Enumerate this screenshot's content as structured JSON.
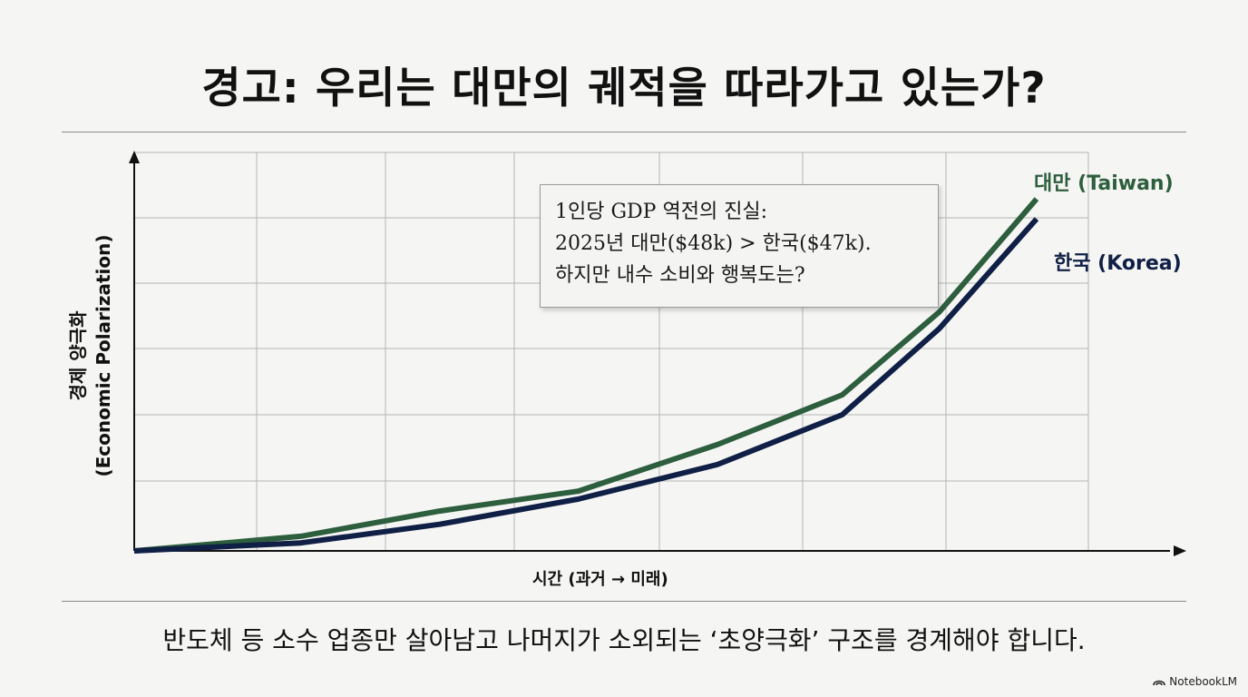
{
  "title": "경고: 우리는 대만의 궤적을 따라가고 있는가?",
  "callout": {
    "line1": "1인당 GDP 역전의 진실:",
    "line2": "2025년 대만($48k) > 한국($47k).",
    "line3": "하지만 내수 소비와 행복도는?"
  },
  "footer": "반도체 등 소수 업종만 살아남고 나머지가 소외되는 ‘초양극화’ 구조를 경계해야 합니다.",
  "brand": "NotebookLM",
  "colors": {
    "taiwan": "#2d5e3e",
    "korea": "#0f1f45",
    "grid": "#b5b5b5",
    "axis": "#111111"
  },
  "chart_data": {
    "type": "line",
    "xlabel": "시간 (과거 → 미래)",
    "ylabel_line1": "경제 양극화",
    "ylabel_line2": "(Economic Polarization)",
    "grid": true,
    "ylim": [
      0,
      6
    ],
    "xlim": [
      0,
      7.5
    ],
    "series": [
      {
        "name": "대만 (Taiwan)",
        "color": "#2d5e3e",
        "x": [
          0,
          1.2,
          2.2,
          3.2,
          4.2,
          5.1,
          5.8,
          6.5
        ],
        "values": [
          0,
          0.22,
          0.6,
          0.9,
          1.6,
          2.35,
          3.6,
          5.3
        ]
      },
      {
        "name": "한국 (Korea)",
        "color": "#0f1f45",
        "x": [
          0,
          1.2,
          2.2,
          3.2,
          4.2,
          5.1,
          5.8,
          6.5
        ],
        "values": [
          0,
          0.12,
          0.4,
          0.78,
          1.3,
          2.05,
          3.35,
          5.0
        ]
      }
    ]
  }
}
